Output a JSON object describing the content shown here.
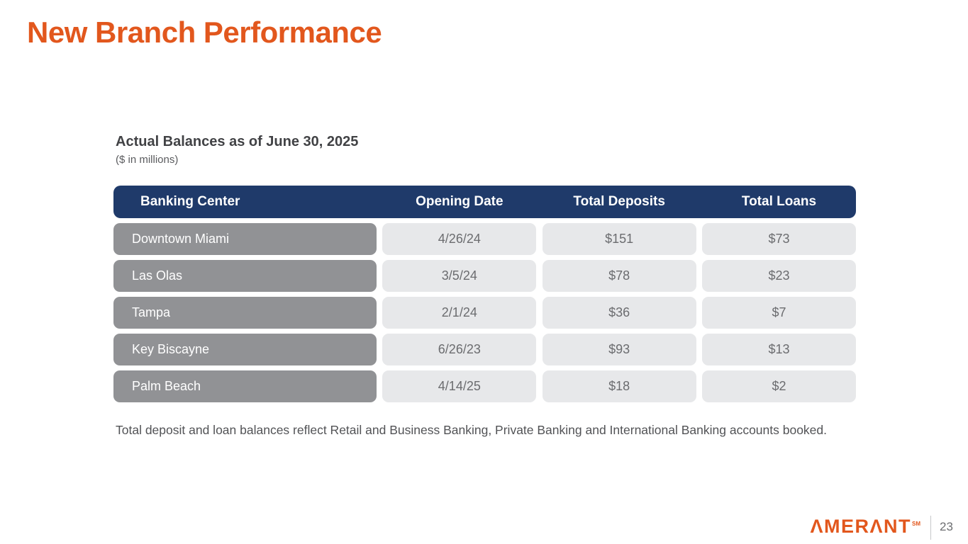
{
  "title": "New Branch Performance",
  "section": {
    "heading": "Actual Balances as of June 30, 2025",
    "note": "($ in millions)"
  },
  "table": {
    "columns": [
      "Banking Center",
      "Opening Date",
      "Total Deposits",
      "Total Loans"
    ],
    "rows": [
      {
        "banking_center": "Downtown Miami",
        "opening_date": "4/26/24",
        "total_deposits": "$151",
        "total_loans": "$73"
      },
      {
        "banking_center": "Las Olas",
        "opening_date": "3/5/24",
        "total_deposits": "$78",
        "total_loans": "$23"
      },
      {
        "banking_center": "Tampa",
        "opening_date": "2/1/24",
        "total_deposits": "$36",
        "total_loans": "$7"
      },
      {
        "banking_center": "Key Biscayne",
        "opening_date": "6/26/23",
        "total_deposits": "$93",
        "total_loans": "$13"
      },
      {
        "banking_center": "Palm Beach",
        "opening_date": "4/14/25",
        "total_deposits": "$18",
        "total_loans": "$2"
      }
    ]
  },
  "footnote": "Total deposit and loan balances reflect Retail and Business Banking, Private Banking and International Banking accounts booked.",
  "footer": {
    "logo_text": "ΛMERΛNT",
    "logo_mark": "SM",
    "page_number": "23"
  },
  "colors": {
    "accent_orange": "#E2571D",
    "header_navy": "#1F3A6A",
    "row_label_gray": "#919295",
    "cell_light_gray": "#E7E8EA",
    "cell_text_gray": "#6B6C6F",
    "footnote_gray": "#525356"
  }
}
